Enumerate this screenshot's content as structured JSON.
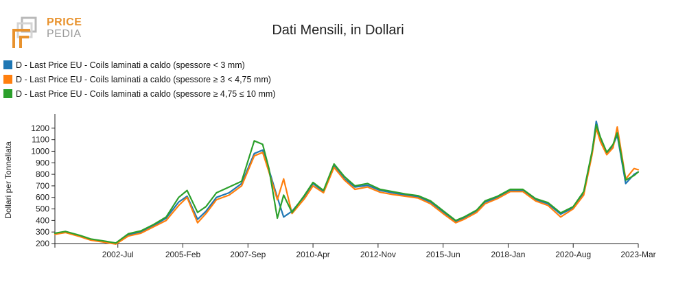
{
  "brand": {
    "line1": "PRICE",
    "line2": "PEDIA"
  },
  "colors": {
    "series1": "#1f77b4",
    "series2": "#ff7f0e",
    "series3": "#2ca02c"
  },
  "chart_data": {
    "type": "line",
    "title": "Dati Mensili, in Dollari",
    "xlabel": "",
    "ylabel": "Dollari per Tonnellata",
    "ylim": [
      200,
      1300
    ],
    "yticks": [
      200,
      300,
      400,
      500,
      600,
      700,
      800,
      900,
      1000,
      1100,
      1200
    ],
    "xlim": [
      "2000-01",
      "2023-03"
    ],
    "xticks": [
      {
        "label": "2002-Jul",
        "date": "2002-07"
      },
      {
        "label": "2005-Feb",
        "date": "2005-02"
      },
      {
        "label": "2007-Sep",
        "date": "2007-09"
      },
      {
        "label": "2010-Apr",
        "date": "2010-04"
      },
      {
        "label": "2012-Nov",
        "date": "2012-11"
      },
      {
        "label": "2015-Jun",
        "date": "2015-06"
      },
      {
        "label": "2018-Jan",
        "date": "2018-01"
      },
      {
        "label": "2020-Aug",
        "date": "2020-08"
      },
      {
        "label": "2023-Mar",
        "date": "2023-03"
      }
    ],
    "grid": false,
    "legend_position": "top-left",
    "x": [
      "2000-01",
      "2000-06",
      "2001-01",
      "2001-06",
      "2002-01",
      "2002-06",
      "2002-12",
      "2003-06",
      "2003-12",
      "2004-06",
      "2004-12",
      "2005-04",
      "2005-09",
      "2006-01",
      "2006-06",
      "2006-12",
      "2007-06",
      "2007-12",
      "2008-04",
      "2008-07",
      "2008-11",
      "2009-02",
      "2009-06",
      "2009-12",
      "2010-04",
      "2010-09",
      "2011-02",
      "2011-07",
      "2011-12",
      "2012-06",
      "2012-12",
      "2013-06",
      "2013-12",
      "2014-06",
      "2014-12",
      "2015-06",
      "2015-12",
      "2016-04",
      "2016-10",
      "2017-02",
      "2017-08",
      "2018-02",
      "2018-08",
      "2019-02",
      "2019-08",
      "2020-02",
      "2020-08",
      "2021-01",
      "2021-05",
      "2021-07",
      "2021-09",
      "2021-12",
      "2022-03",
      "2022-05",
      "2022-09",
      "2023-01",
      "2023-03"
    ],
    "series": [
      {
        "name": "D - Last Price EU - Coils laminati a caldo (spessore < 3 mm)",
        "values": [
          285,
          300,
          265,
          235,
          215,
          200,
          275,
          300,
          355,
          420,
          560,
          610,
          410,
          480,
          600,
          640,
          720,
          980,
          1010,
          840,
          600,
          430,
          480,
          610,
          720,
          650,
          870,
          760,
          690,
          705,
          660,
          640,
          620,
          605,
          560,
          475,
          390,
          420,
          480,
          560,
          600,
          660,
          660,
          580,
          545,
          455,
          510,
          640,
          990,
          1260,
          1100,
          980,
          1050,
          1140,
          720,
          800,
          820
        ]
      },
      {
        "name": "D - Last Price EU - Coils laminati a caldo (spessore ≥ 3 < 4,75 mm)",
        "values": [
          280,
          295,
          260,
          230,
          210,
          195,
          265,
          290,
          345,
          400,
          530,
          600,
          380,
          460,
          580,
          620,
          700,
          960,
          990,
          820,
          580,
          760,
          460,
          590,
          700,
          640,
          860,
          750,
          670,
          690,
          645,
          625,
          610,
          595,
          545,
          460,
          380,
          410,
          470,
          545,
          590,
          650,
          650,
          570,
          530,
          430,
          500,
          620,
          970,
          1200,
          1080,
          970,
          1030,
          1210,
          760,
          850,
          840
        ]
      },
      {
        "name": "D - Last Price EU - Coils laminati a caldo (spessore ≥ 4,75 ≤ 10 mm)",
        "values": [
          290,
          305,
          270,
          240,
          220,
          205,
          285,
          310,
          365,
          430,
          600,
          660,
          470,
          520,
          640,
          690,
          740,
          1090,
          1060,
          850,
          420,
          620,
          470,
          620,
          730,
          660,
          890,
          780,
          700,
          720,
          670,
          650,
          630,
          615,
          570,
          485,
          400,
          430,
          490,
          570,
          610,
          670,
          670,
          590,
          555,
          465,
          520,
          650,
          1000,
          1230,
          1120,
          990,
          1060,
          1160,
          750,
          790,
          820
        ]
      }
    ]
  }
}
